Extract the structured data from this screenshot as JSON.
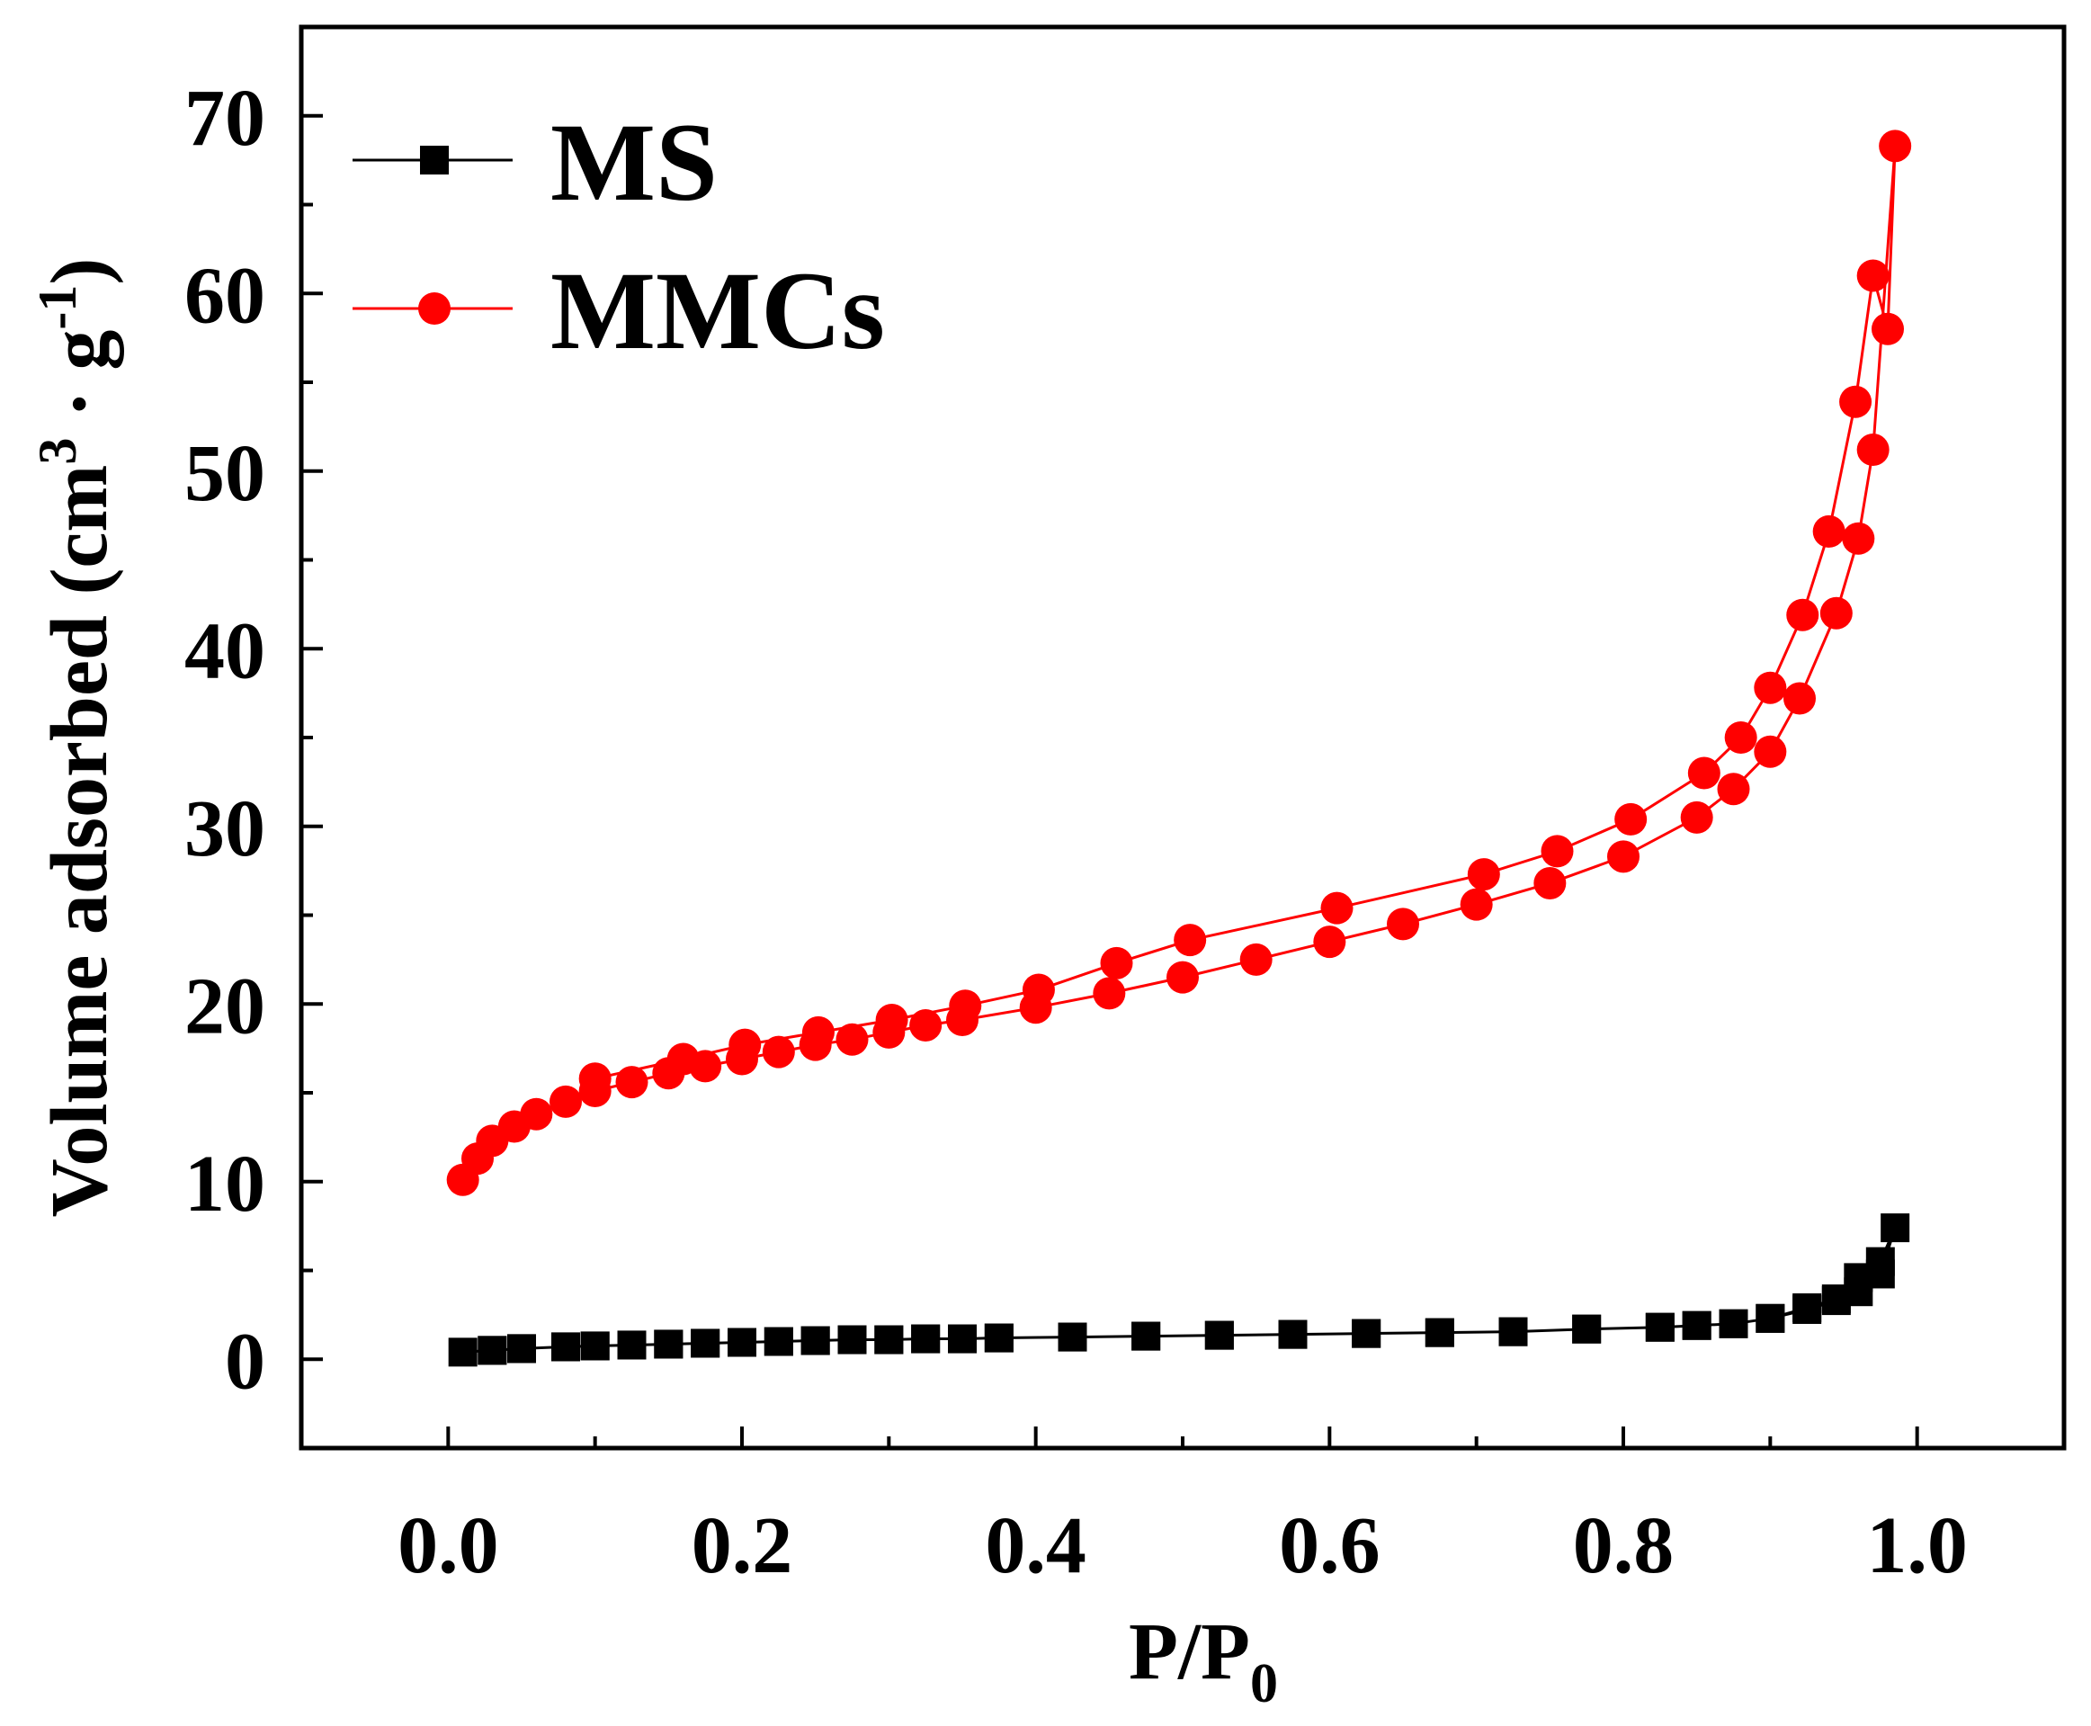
{
  "chart_data": {
    "type": "scatter",
    "title": "",
    "xlabel": "P/P",
    "xlabel_subscript": "0",
    "ylabel_parts": [
      "Volume adsorbed (cm",
      "3",
      " · g",
      "-1",
      ")"
    ],
    "xlim": [
      -0.1,
      1.1
    ],
    "ylim": [
      -5,
      75
    ],
    "x_ticks": [
      0.0,
      0.2,
      0.4,
      0.6,
      0.8,
      1.0
    ],
    "x_tick_labels": [
      "0.0",
      "0.2",
      "0.4",
      "0.6",
      "0.8",
      "1.0"
    ],
    "y_ticks": [
      0,
      10,
      20,
      30,
      40,
      50,
      60,
      70
    ],
    "y_tick_labels": [
      "0",
      "10",
      "20",
      "30",
      "40",
      "50",
      "60",
      "70"
    ],
    "legend_position": "top-left",
    "grid": false,
    "series": [
      {
        "name": "MS",
        "color": "#000000",
        "marker": "square",
        "x": [
          0.01,
          0.03,
          0.05,
          0.08,
          0.1,
          0.125,
          0.15,
          0.175,
          0.2,
          0.225,
          0.25,
          0.275,
          0.3,
          0.325,
          0.35,
          0.375,
          0.425,
          0.475,
          0.525,
          0.575,
          0.625,
          0.675,
          0.725,
          0.775,
          0.825,
          0.85,
          0.875,
          0.9,
          0.925,
          0.945,
          0.96,
          0.975,
          0.985,
          0.975,
          0.96,
          0.945,
          0.925,
          0.9,
          0.875,
          0.85,
          0.825,
          0.775,
          0.725,
          0.675,
          0.625,
          0.575,
          0.525,
          0.475,
          0.425,
          0.375,
          0.35,
          0.325,
          0.3,
          0.275,
          0.25,
          0.225,
          0.2,
          0.175,
          0.15,
          0.125,
          0.1,
          0.08,
          0.05,
          0.03
        ],
        "y": [
          0.4,
          0.5,
          0.6,
          0.7,
          0.75,
          0.8,
          0.85,
          0.9,
          0.95,
          1.0,
          1.05,
          1.1,
          1.1,
          1.15,
          1.15,
          1.2,
          1.25,
          1.3,
          1.35,
          1.4,
          1.45,
          1.5,
          1.55,
          1.7,
          1.8,
          1.9,
          2.0,
          2.3,
          2.8,
          3.3,
          3.8,
          4.8,
          7.4,
          5.5,
          4.6,
          3.4,
          2.9,
          2.3,
          2.0,
          1.9,
          1.8,
          1.7,
          1.55,
          1.5,
          1.45,
          1.4,
          1.35,
          1.3,
          1.25,
          1.2,
          1.15,
          1.15,
          1.1,
          1.1,
          1.05,
          1.0,
          0.95,
          0.9,
          0.85,
          0.8,
          0.75,
          0.7,
          0.6,
          0.5
        ]
      },
      {
        "name": "MMCs",
        "color": "#ff0000",
        "marker": "circle",
        "x": [
          0.01,
          0.02,
          0.03,
          0.045,
          0.06,
          0.08,
          0.1,
          0.125,
          0.15,
          0.175,
          0.2,
          0.225,
          0.25,
          0.275,
          0.3,
          0.325,
          0.35,
          0.4,
          0.45,
          0.5,
          0.55,
          0.6,
          0.65,
          0.7,
          0.75,
          0.8,
          0.85,
          0.875,
          0.9,
          0.92,
          0.945,
          0.96,
          0.97,
          0.985,
          0.98,
          0.97,
          0.958,
          0.94,
          0.922,
          0.9,
          0.88,
          0.855,
          0.805,
          0.755,
          0.705,
          0.605,
          0.505,
          0.455,
          0.402,
          0.352,
          0.302,
          0.252,
          0.202,
          0.16,
          0.1
        ],
        "y": [
          10.1,
          11.3,
          12.3,
          13.1,
          13.8,
          14.5,
          15.1,
          15.6,
          16.1,
          16.5,
          16.9,
          17.3,
          17.7,
          18.0,
          18.4,
          18.8,
          19.1,
          19.8,
          20.6,
          21.5,
          22.5,
          23.5,
          24.5,
          25.6,
          26.8,
          28.3,
          30.5,
          32.1,
          34.2,
          37.2,
          42.0,
          46.2,
          51.2,
          68.3,
          58.0,
          61.0,
          53.9,
          46.6,
          41.9,
          37.8,
          35.0,
          33.0,
          30.4,
          28.6,
          27.3,
          25.4,
          23.6,
          22.3,
          20.8,
          19.9,
          19.1,
          18.4,
          17.7,
          16.9,
          15.8
        ]
      }
    ]
  }
}
